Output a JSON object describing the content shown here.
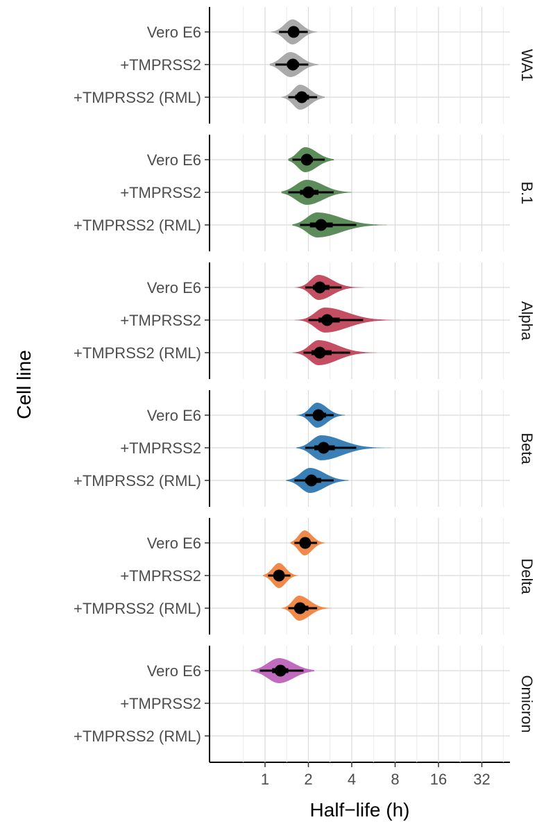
{
  "chart_data": {
    "type": "violin",
    "xlabel": "Half−life (h)",
    "ylabel": "Cell line",
    "x_scale": "log2",
    "x_ticks": [
      1,
      2,
      4,
      8,
      16,
      32
    ],
    "x_tick_labels": [
      "1",
      "2",
      "4",
      "8",
      "16",
      "32"
    ],
    "xlim": [
      0.5,
      48
    ],
    "grid": true,
    "cell_lines": [
      "Vero E6",
      "+TMPRSS2",
      "+TMPRSS2 (RML)"
    ],
    "panels": [
      {
        "name": "WA1",
        "color": "#aaaaaa",
        "rows": [
          {
            "cell_line": "Vero E6",
            "median": 1.58,
            "inner": [
              1.45,
              1.72
            ],
            "outer": [
              1.25,
              1.98
            ],
            "range": [
              1.1,
              2.3
            ],
            "peak": 1.55
          },
          {
            "cell_line": "+TMPRSS2",
            "median": 1.56,
            "inner": [
              1.42,
              1.72
            ],
            "outer": [
              1.18,
              2.0
            ],
            "range": [
              1.08,
              2.35
            ],
            "peak": 1.5
          },
          {
            "cell_line": "+TMPRSS2 (RML)",
            "median": 1.8,
            "inner": [
              1.62,
              2.02
            ],
            "outer": [
              1.45,
              2.3
            ],
            "range": [
              1.3,
              2.6
            ],
            "peak": 1.75
          }
        ]
      },
      {
        "name": "B.1",
        "color": "#5b8c5a",
        "rows": [
          {
            "cell_line": "Vero E6",
            "median": 1.95,
            "inner": [
              1.78,
              2.15
            ],
            "outer": [
              1.55,
              2.6
            ],
            "range": [
              1.45,
              3.0
            ],
            "peak": 1.9
          },
          {
            "cell_line": "+TMPRSS2",
            "median": 2.0,
            "inner": [
              1.75,
              2.35
            ],
            "outer": [
              1.45,
              3.0
            ],
            "range": [
              1.3,
              4.0
            ],
            "peak": 1.95
          },
          {
            "cell_line": "+TMPRSS2 (RML)",
            "median": 2.45,
            "inner": [
              2.05,
              2.95
            ],
            "outer": [
              1.75,
              4.3
            ],
            "range": [
              1.55,
              7.0
            ],
            "peak": 2.3
          }
        ]
      },
      {
        "name": "Alpha",
        "color": "#c44e62",
        "rows": [
          {
            "cell_line": "Vero E6",
            "median": 2.4,
            "inner": [
              2.15,
              2.8
            ],
            "outer": [
              1.9,
              3.4
            ],
            "range": [
              1.6,
              6.0
            ],
            "peak": 2.35
          },
          {
            "cell_line": "+TMPRSS2",
            "median": 2.7,
            "inner": [
              2.35,
              3.3
            ],
            "outer": [
              2.0,
              4.8
            ],
            "range": [
              1.6,
              9.0
            ],
            "peak": 2.6
          },
          {
            "cell_line": "+TMPRSS2 (RML)",
            "median": 2.4,
            "inner": [
              2.1,
              2.9
            ],
            "outer": [
              1.85,
              3.9
            ],
            "range": [
              1.55,
              6.0
            ],
            "peak": 2.35
          }
        ]
      },
      {
        "name": "Beta",
        "color": "#3a7fb5",
        "rows": [
          {
            "cell_line": "Vero E6",
            "median": 2.35,
            "inner": [
              2.15,
              2.65
            ],
            "outer": [
              1.9,
              3.0
            ],
            "range": [
              1.65,
              3.6
            ],
            "peak": 2.3
          },
          {
            "cell_line": "+TMPRSS2",
            "median": 2.55,
            "inner": [
              2.2,
              3.05
            ],
            "outer": [
              1.9,
              4.3
            ],
            "range": [
              1.65,
              12.0
            ],
            "peak": 2.45
          },
          {
            "cell_line": "+TMPRSS2 (RML)",
            "median": 2.1,
            "inner": [
              1.9,
              2.45
            ],
            "outer": [
              1.6,
              3.0
            ],
            "range": [
              1.4,
              3.8
            ],
            "peak": 2.05
          }
        ]
      },
      {
        "name": "Delta",
        "color": "#f08a4b",
        "rows": [
          {
            "cell_line": "Vero E6",
            "median": 1.9,
            "inner": [
              1.75,
              2.05
            ],
            "outer": [
              1.6,
              2.3
            ],
            "range": [
              1.5,
              2.6
            ],
            "peak": 1.88
          },
          {
            "cell_line": "+TMPRSS2",
            "median": 1.25,
            "inner": [
              1.15,
              1.35
            ],
            "outer": [
              1.05,
              1.5
            ],
            "range": [
              0.97,
              1.7
            ],
            "peak": 1.25
          },
          {
            "cell_line": "+TMPRSS2 (RML)",
            "median": 1.75,
            "inner": [
              1.6,
              2.0
            ],
            "outer": [
              1.45,
              2.3
            ],
            "range": [
              1.3,
              2.9
            ],
            "peak": 1.72
          }
        ]
      },
      {
        "name": "Omicron",
        "color": "#c06bbd",
        "rows": [
          {
            "cell_line": "Vero E6",
            "median": 1.28,
            "inner": [
              1.12,
              1.45
            ],
            "outer": [
              0.92,
              1.85
            ],
            "range": [
              0.8,
              2.2
            ],
            "peak": 1.25
          }
        ]
      }
    ]
  }
}
